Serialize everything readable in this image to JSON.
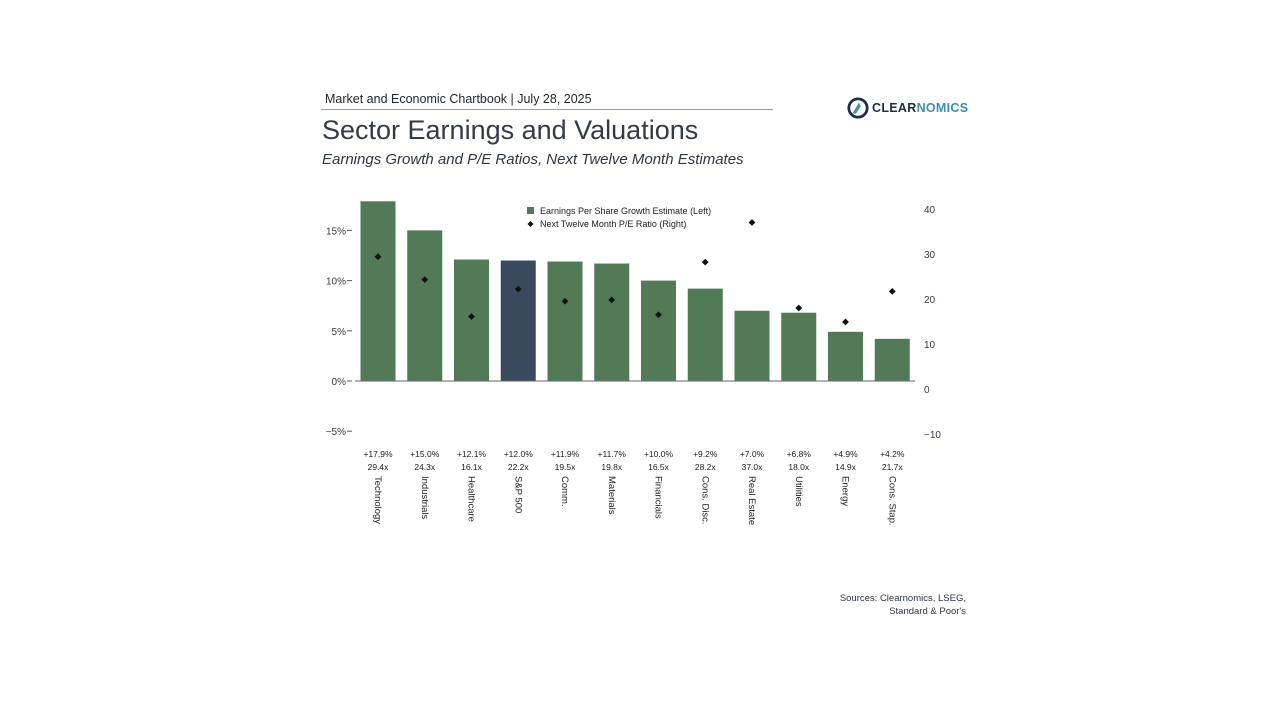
{
  "header": {
    "chartbook": "Market and Economic Chartbook | July 28, 2025",
    "logo": {
      "clear": "CLEAR",
      "nomics": "NOMICS"
    }
  },
  "title": "Sector Earnings and Valuations",
  "subtitle": "Earnings Growth and P/E Ratios, Next Twelve Month Estimates",
  "sources": "Sources: Clearnomics, LSEG, Standard & Poor's",
  "colors": {
    "bar": "#527a56",
    "highlight": "#3a4a5e",
    "marker": "#111111",
    "axis": "#555555"
  },
  "chart_data": {
    "type": "bar",
    "categories": [
      "Technology",
      "Industrials",
      "Healthcare",
      "S&P 500",
      "Comm.",
      "Materials",
      "Financials",
      "Cons. Disc.",
      "Real Estate",
      "Utilities",
      "Energy",
      "Cons. Stap."
    ],
    "series": [
      {
        "name": "Earnings Per Share Growth Estimate (Left)",
        "type": "bar",
        "axis": "left",
        "values": [
          17.9,
          15.0,
          12.1,
          12.0,
          11.9,
          11.7,
          10.0,
          9.2,
          7.0,
          6.8,
          4.9,
          4.2
        ],
        "labels": [
          "+17.9%",
          "+15.0%",
          "+12.1%",
          "+12.0%",
          "+11.9%",
          "+11.7%",
          "+10.0%",
          "+9.2%",
          "+7.0%",
          "+6.8%",
          "+4.9%",
          "+4.2%"
        ]
      },
      {
        "name": "Next Twelve Month P/E Ratio (Right)",
        "type": "scatter",
        "axis": "right",
        "values": [
          29.4,
          24.3,
          16.1,
          22.2,
          19.5,
          19.8,
          16.5,
          28.2,
          37.0,
          18.0,
          14.9,
          21.7
        ],
        "labels": [
          "29.4x",
          "24.3x",
          "16.1x",
          "22.2x",
          "19.5x",
          "19.8x",
          "16.5x",
          "28.2x",
          "37.0x",
          "18.0x",
          "14.9x",
          "21.7x"
        ]
      }
    ],
    "highlight_category": "S&P 500",
    "left_axis": {
      "ticks": [
        -5,
        0,
        5,
        10,
        15
      ],
      "tick_labels": [
        "−5%",
        "0%",
        "5%",
        "10%",
        "15%"
      ],
      "ylim": [
        -5,
        18
      ]
    },
    "right_axis": {
      "ticks": [
        -10,
        0,
        10,
        20,
        30,
        40
      ],
      "tick_labels": [
        "−10",
        "0",
        "10",
        "20",
        "30",
        "40"
      ],
      "ylim": [
        -10,
        40
      ]
    },
    "legend_position": "top-center",
    "grid": false
  }
}
